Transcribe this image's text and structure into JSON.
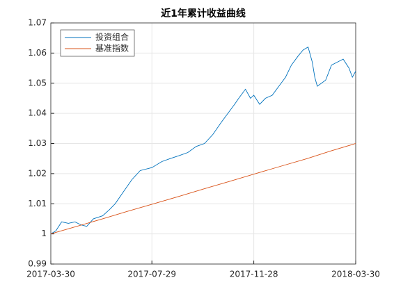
{
  "chart_data": {
    "type": "line",
    "title": "近1年累计收益曲线",
    "xlim": [
      "2017-03-30",
      "2018-03-30"
    ],
    "xticks": [
      "2017-03-30",
      "2017-07-29",
      "2017-11-28",
      "2018-03-30"
    ],
    "ylim": [
      0.99,
      1.07
    ],
    "yticks": [
      0.99,
      1,
      1.01,
      1.02,
      1.03,
      1.04,
      1.05,
      1.06,
      1.07
    ],
    "grid": true,
    "legend": "upper-left",
    "series": [
      {
        "name": "投资组合",
        "color": "#0072bd",
        "x": [
          "2017-03-30",
          "2017-04-05",
          "2017-04-12",
          "2017-04-20",
          "2017-04-28",
          "2017-05-05",
          "2017-05-12",
          "2017-05-20",
          "2017-05-31",
          "2017-06-08",
          "2017-06-15",
          "2017-06-25",
          "2017-07-05",
          "2017-07-15",
          "2017-07-29",
          "2017-08-10",
          "2017-08-20",
          "2017-08-31",
          "2017-09-10",
          "2017-09-20",
          "2017-09-30",
          "2017-10-10",
          "2017-10-20",
          "2017-10-28",
          "2017-11-05",
          "2017-11-10",
          "2017-11-18",
          "2017-11-24",
          "2017-11-28",
          "2017-12-05",
          "2017-12-12",
          "2017-12-20",
          "2017-12-28",
          "2018-01-05",
          "2018-01-12",
          "2018-01-20",
          "2018-01-26",
          "2018-02-01",
          "2018-02-06",
          "2018-02-09",
          "2018-02-12",
          "2018-02-22",
          "2018-03-01",
          "2018-03-08",
          "2018-03-15",
          "2018-03-22",
          "2018-03-26",
          "2018-03-30"
        ],
        "values": [
          1.0,
          1.001,
          1.004,
          1.0035,
          1.004,
          1.003,
          1.0025,
          1.005,
          1.006,
          1.008,
          1.01,
          1.014,
          1.018,
          1.021,
          1.022,
          1.024,
          1.025,
          1.026,
          1.027,
          1.029,
          1.03,
          1.033,
          1.037,
          1.04,
          1.043,
          1.045,
          1.048,
          1.045,
          1.046,
          1.043,
          1.045,
          1.046,
          1.049,
          1.052,
          1.056,
          1.059,
          1.061,
          1.062,
          1.057,
          1.052,
          1.049,
          1.051,
          1.056,
          1.057,
          1.058,
          1.055,
          1.052,
          1.054
        ]
      },
      {
        "name": "基准指数",
        "color": "#d95319",
        "x": [
          "2017-03-30",
          "2017-04-30",
          "2017-05-31",
          "2017-06-30",
          "2017-07-31",
          "2017-08-31",
          "2017-09-30",
          "2017-10-31",
          "2017-11-30",
          "2017-12-31",
          "2018-01-31",
          "2018-02-28",
          "2018-03-30"
        ],
        "values": [
          1.0,
          1.0025,
          1.005,
          1.0075,
          1.01,
          1.0125,
          1.015,
          1.0175,
          1.02,
          1.0225,
          1.025,
          1.0275,
          1.03
        ]
      }
    ]
  }
}
